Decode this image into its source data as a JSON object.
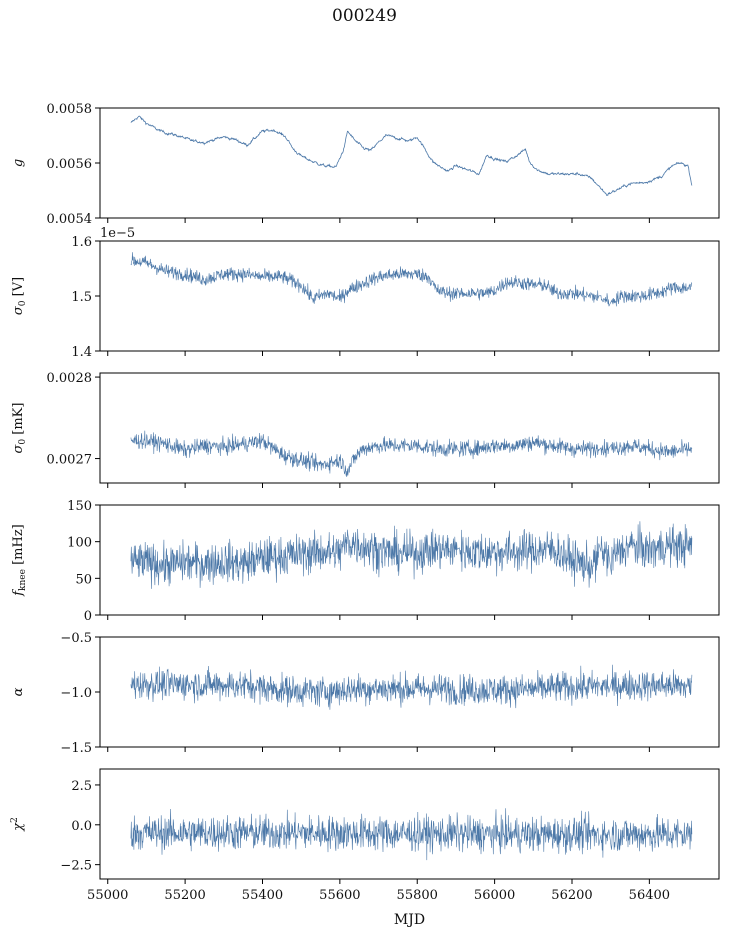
{
  "figure": {
    "title": "000249",
    "xlabel": "MJD"
  },
  "colors": {
    "series": "#4c78a8",
    "axis": "#000000"
  },
  "chart_data": [
    {
      "type": "line",
      "ylabel": "g",
      "ylim": [
        0.0054,
        0.0058
      ],
      "yticks": [
        0.0054,
        0.0056,
        0.0058
      ],
      "ytick_labels": [
        "0.0054",
        "0.0056",
        "0.0058"
      ],
      "offset_label": "",
      "xlim": [
        54980,
        56580
      ],
      "x_range": [
        55060,
        56510
      ],
      "trend": [
        [
          55060,
          0.005745
        ],
        [
          55080,
          0.00577
        ],
        [
          55100,
          0.005745
        ],
        [
          55130,
          0.00572
        ],
        [
          55150,
          0.00571
        ],
        [
          55180,
          0.0057
        ],
        [
          55220,
          0.00568
        ],
        [
          55250,
          0.005675
        ],
        [
          55300,
          0.005695
        ],
        [
          55330,
          0.005685
        ],
        [
          55360,
          0.005665
        ],
        [
          55400,
          0.005715
        ],
        [
          55430,
          0.00572
        ],
        [
          55460,
          0.005695
        ],
        [
          55480,
          0.00565
        ],
        [
          55500,
          0.005625
        ],
        [
          55530,
          0.005605
        ],
        [
          55560,
          0.00559
        ],
        [
          55590,
          0.005585
        ],
        [
          55610,
          0.00565
        ],
        [
          55620,
          0.005715
        ],
        [
          55640,
          0.00568
        ],
        [
          55660,
          0.005655
        ],
        [
          55680,
          0.005645
        ],
        [
          55700,
          0.005675
        ],
        [
          55720,
          0.0057
        ],
        [
          55750,
          0.00569
        ],
        [
          55780,
          0.00568
        ],
        [
          55800,
          0.005695
        ],
        [
          55820,
          0.00565
        ],
        [
          55840,
          0.005605
        ],
        [
          55860,
          0.005585
        ],
        [
          55880,
          0.00557
        ],
        [
          55900,
          0.00559
        ],
        [
          55930,
          0.005575
        ],
        [
          55960,
          0.00556
        ],
        [
          55980,
          0.00563
        ],
        [
          56000,
          0.005615
        ],
        [
          56030,
          0.005605
        ],
        [
          56060,
          0.00563
        ],
        [
          56080,
          0.00565
        ],
        [
          56090,
          0.005605
        ],
        [
          56110,
          0.005575
        ],
        [
          56140,
          0.00556
        ],
        [
          56180,
          0.00556
        ],
        [
          56220,
          0.00556
        ],
        [
          56250,
          0.005545
        ],
        [
          56290,
          0.005485
        ],
        [
          56320,
          0.005505
        ],
        [
          56350,
          0.005525
        ],
        [
          56390,
          0.00553
        ],
        [
          56430,
          0.00555
        ],
        [
          56460,
          0.00559
        ],
        [
          56480,
          0.0056
        ],
        [
          56500,
          0.00559
        ],
        [
          56510,
          0.00552
        ]
      ],
      "noise": 3.5e-06
    },
    {
      "type": "line",
      "ylabel": "σ₀ [V]",
      "ylim": [
        1.4,
        1.6
      ],
      "yticks": [
        1.4,
        1.5,
        1.6
      ],
      "ytick_labels": [
        "1.4",
        "1.5",
        "1.6"
      ],
      "offset_label": "1e−5",
      "xlim": [
        54980,
        56580
      ],
      "x_range": [
        55060,
        56510
      ],
      "trend": [
        [
          55060,
          1.565
        ],
        [
          55100,
          1.56
        ],
        [
          55150,
          1.545
        ],
        [
          55200,
          1.54
        ],
        [
          55250,
          1.53
        ],
        [
          55300,
          1.54
        ],
        [
          55350,
          1.54
        ],
        [
          55400,
          1.535
        ],
        [
          55450,
          1.535
        ],
        [
          55500,
          1.52
        ],
        [
          55530,
          1.495
        ],
        [
          55570,
          1.505
        ],
        [
          55600,
          1.495
        ],
        [
          55620,
          1.51
        ],
        [
          55650,
          1.52
        ],
        [
          55700,
          1.535
        ],
        [
          55750,
          1.54
        ],
        [
          55800,
          1.54
        ],
        [
          55830,
          1.535
        ],
        [
          55850,
          1.51
        ],
        [
          55880,
          1.505
        ],
        [
          55930,
          1.505
        ],
        [
          55980,
          1.505
        ],
        [
          56000,
          1.51
        ],
        [
          56030,
          1.525
        ],
        [
          56060,
          1.525
        ],
        [
          56100,
          1.52
        ],
        [
          56130,
          1.52
        ],
        [
          56160,
          1.505
        ],
        [
          56200,
          1.505
        ],
        [
          56250,
          1.5
        ],
        [
          56280,
          1.495
        ],
        [
          56300,
          1.49
        ],
        [
          56330,
          1.5
        ],
        [
          56380,
          1.5
        ],
        [
          56420,
          1.505
        ],
        [
          56460,
          1.515
        ],
        [
          56510,
          1.515
        ]
      ],
      "noise": 0.012
    },
    {
      "type": "line",
      "ylabel": "σ₀ [mK]",
      "ylim": [
        0.00267,
        0.002805
      ],
      "yticks": [
        0.0027,
        0.0028
      ],
      "ytick_labels": [
        "0.0027",
        "0.0028"
      ],
      "offset_label": "",
      "xlim": [
        54980,
        56580
      ],
      "x_range": [
        55060,
        56510
      ],
      "trend": [
        [
          55060,
          0.002722
        ],
        [
          55100,
          0.002722
        ],
        [
          55150,
          0.002718
        ],
        [
          55200,
          0.00271
        ],
        [
          55250,
          0.002716
        ],
        [
          55300,
          0.002714
        ],
        [
          55350,
          0.002718
        ],
        [
          55400,
          0.002722
        ],
        [
          55430,
          0.002712
        ],
        [
          55460,
          0.002703
        ],
        [
          55500,
          0.002698
        ],
        [
          55550,
          0.002692
        ],
        [
          55600,
          0.002698
        ],
        [
          55620,
          0.002685
        ],
        [
          55640,
          0.002702
        ],
        [
          55660,
          0.002712
        ],
        [
          55700,
          0.002716
        ],
        [
          55750,
          0.002716
        ],
        [
          55800,
          0.002716
        ],
        [
          55850,
          0.002712
        ],
        [
          55900,
          0.002712
        ],
        [
          55950,
          0.002712
        ],
        [
          56000,
          0.002716
        ],
        [
          56050,
          0.002716
        ],
        [
          56100,
          0.00272
        ],
        [
          56150,
          0.002716
        ],
        [
          56200,
          0.002712
        ],
        [
          56250,
          0.002712
        ],
        [
          56300,
          0.002712
        ],
        [
          56350,
          0.002716
        ],
        [
          56400,
          0.002712
        ],
        [
          56450,
          0.002708
        ],
        [
          56510,
          0.002712
        ]
      ],
      "noise": 9.5e-06
    },
    {
      "type": "line",
      "ylabel": "f_knee [mHz]",
      "ylim": [
        0,
        150
      ],
      "yticks": [
        0,
        50,
        100,
        150
      ],
      "ytick_labels": [
        "0",
        "50",
        "100",
        "150"
      ],
      "offset_label": "",
      "xlim": [
        54980,
        56580
      ],
      "x_range": [
        55060,
        56510
      ],
      "trend": [
        [
          55060,
          72
        ],
        [
          55100,
          72
        ],
        [
          55150,
          68
        ],
        [
          55200,
          72
        ],
        [
          55250,
          70
        ],
        [
          55300,
          73
        ],
        [
          55350,
          70
        ],
        [
          55400,
          78
        ],
        [
          55450,
          80
        ],
        [
          55500,
          83
        ],
        [
          55550,
          86
        ],
        [
          55600,
          85
        ],
        [
          55620,
          100
        ],
        [
          55650,
          95
        ],
        [
          55700,
          88
        ],
        [
          55750,
          84
        ],
        [
          55800,
          85
        ],
        [
          55850,
          90
        ],
        [
          55900,
          88
        ],
        [
          55950,
          86
        ],
        [
          56000,
          86
        ],
        [
          56050,
          86
        ],
        [
          56100,
          88
        ],
        [
          56150,
          90
        ],
        [
          56200,
          75
        ],
        [
          56250,
          66
        ],
        [
          56280,
          86
        ],
        [
          56300,
          78
        ],
        [
          56350,
          95
        ],
        [
          56400,
          88
        ],
        [
          56450,
          95
        ],
        [
          56510,
          93
        ]
      ],
      "noise": 26
    },
    {
      "type": "line",
      "ylabel": "α",
      "ylim": [
        -1.5,
        -0.5
      ],
      "yticks": [
        -1.5,
        -1.0,
        -0.5
      ],
      "ytick_labels": [
        "−1.5",
        "−1.0",
        "−0.5"
      ],
      "offset_label": "",
      "xlim": [
        54980,
        56580
      ],
      "x_range": [
        55060,
        56510
      ],
      "trend": [
        [
          55060,
          -0.93
        ],
        [
          55200,
          -0.93
        ],
        [
          55350,
          -0.94
        ],
        [
          55450,
          -0.98
        ],
        [
          55550,
          -1.0
        ],
        [
          55650,
          -0.97
        ],
        [
          55750,
          -0.97
        ],
        [
          55850,
          -0.97
        ],
        [
          55950,
          -0.98
        ],
        [
          56050,
          -0.98
        ],
        [
          56150,
          -0.96
        ],
        [
          56250,
          -0.95
        ],
        [
          56350,
          -0.94
        ],
        [
          56450,
          -0.94
        ],
        [
          56510,
          -0.95
        ]
      ],
      "noise": 0.13
    },
    {
      "type": "line",
      "ylabel": "χ²",
      "ylim": [
        -3.4,
        3.5
      ],
      "yticks": [
        -2.5,
        0.0,
        2.5
      ],
      "ytick_labels": [
        "−2.5",
        "0.0",
        "2.5"
      ],
      "offset_label": "",
      "xlim": [
        54980,
        56580
      ],
      "x_range": [
        55060,
        56510
      ],
      "trend": [
        [
          55060,
          -0.5
        ],
        [
          55500,
          -0.5
        ],
        [
          56000,
          -0.6
        ],
        [
          56510,
          -0.6
        ]
      ],
      "noise": 1.05
    }
  ],
  "xticks": [
    55000,
    55200,
    55400,
    55600,
    55800,
    56000,
    56200,
    56400
  ],
  "xtick_labels": [
    "55000",
    "55200",
    "55400",
    "55600",
    "55800",
    "56000",
    "56200",
    "56400"
  ]
}
